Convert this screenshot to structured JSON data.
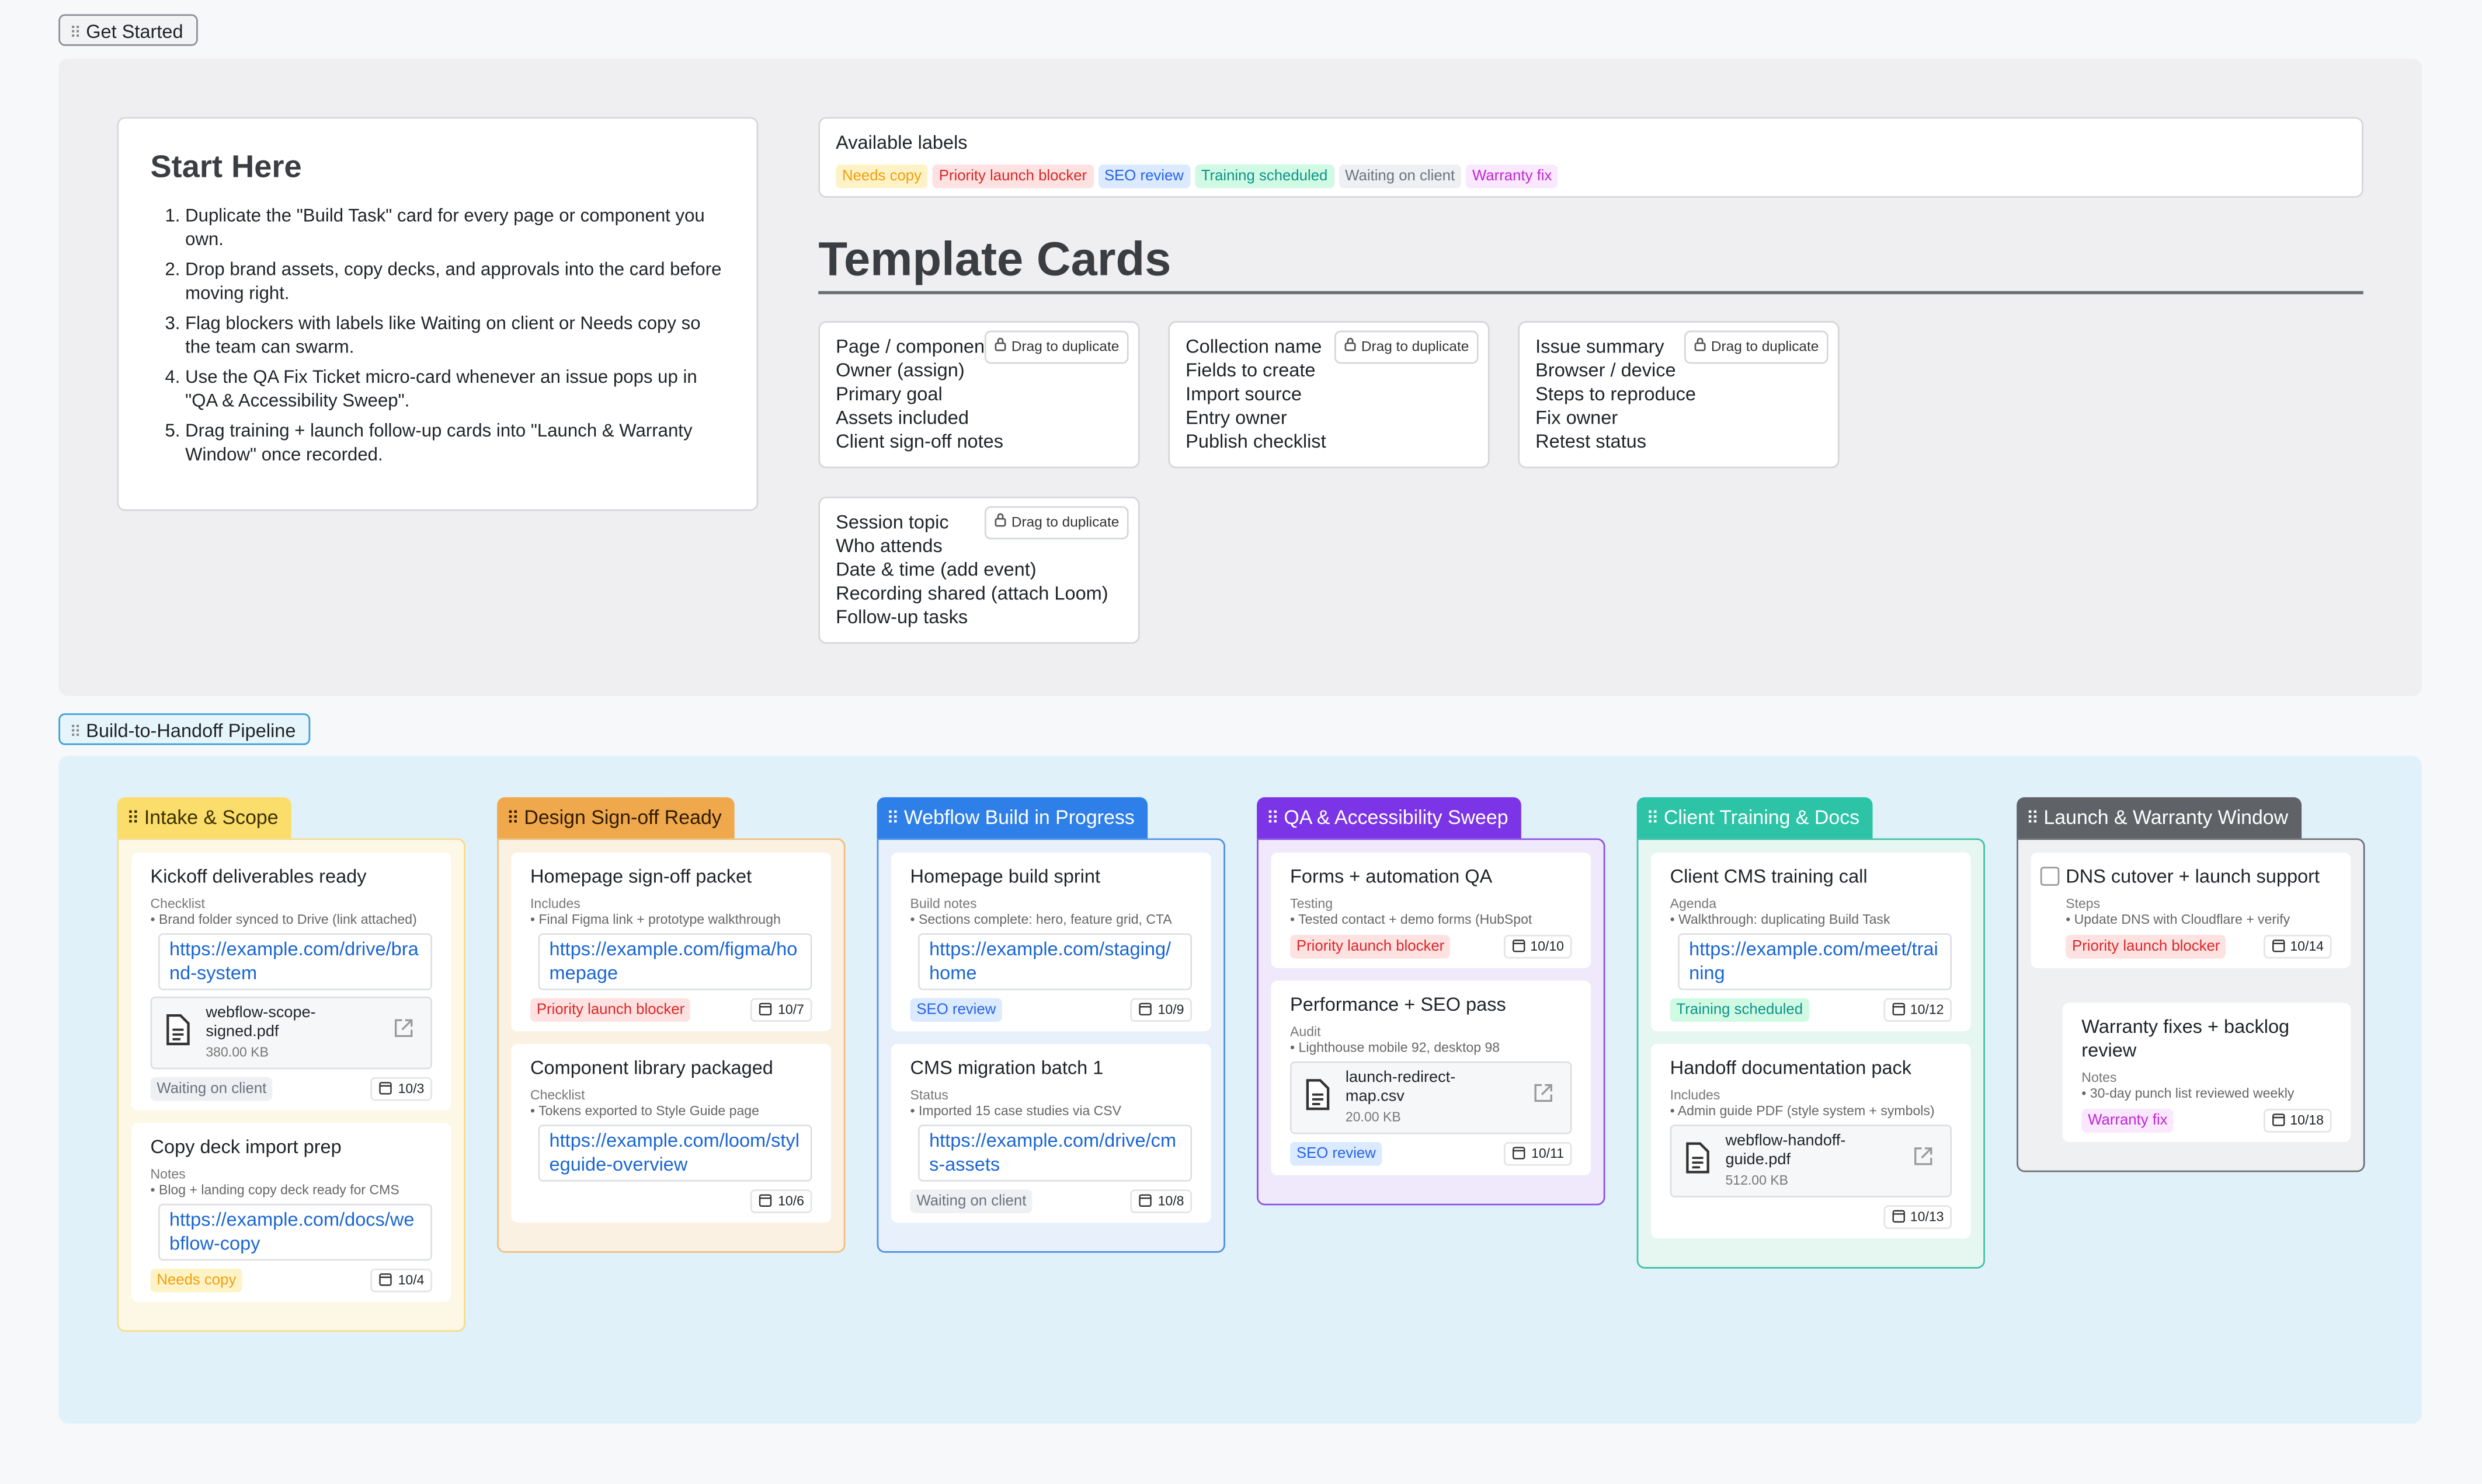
{
  "get_started": {
    "tab": "Get Started",
    "start_here": {
      "title": "Start Here",
      "steps": [
        "Duplicate the \"Build Task\" card for every page or component you own.",
        "Drop brand assets, copy decks, and approvals into the card before moving right.",
        "Flag blockers with labels like Waiting on client or Needs copy so the team can swarm.",
        "Use the QA Fix Ticket micro-card whenever an issue pops up in \"QA & Accessibility Sweep\".",
        "Drag training + launch follow-up cards into \"Launch & Warranty Window\" once recorded."
      ]
    },
    "available_labels": {
      "title": "Available labels",
      "labels": [
        {
          "text": "Needs copy",
          "color": "#f59e0b",
          "bg": "#fef3c7"
        },
        {
          "text": "Priority launch blocker",
          "color": "#dc2626",
          "bg": "#fee2e2"
        },
        {
          "text": "SEO review",
          "color": "#2563eb",
          "bg": "#dbeafe"
        },
        {
          "text": "Training scheduled",
          "color": "#0d9488",
          "bg": "#d1fae5"
        },
        {
          "text": "Waiting on client",
          "color": "#6b7280",
          "bg": "#eef0f3"
        },
        {
          "text": "Warranty fix",
          "color": "#c026d3",
          "bg": "#fae8ff"
        }
      ]
    },
    "template_cards": {
      "title": "Template Cards",
      "drag_hint": "Drag to duplicate",
      "cards": [
        [
          "Page / componen",
          "Owner (assign)",
          "Primary goal",
          "Assets included",
          "Client sign-off notes"
        ],
        [
          "Collection name",
          "Fields to create",
          "Import source",
          "Entry owner",
          "Publish checklist"
        ],
        [
          "Issue summary",
          "Browser / device",
          "Steps to reproduce",
          "Fix owner",
          "Retest status"
        ],
        [
          "Session topic",
          "Who attends",
          "Date & time (add event)",
          "Recording shared (attach Loom)",
          "Follow-up tasks"
        ]
      ]
    }
  },
  "pipeline": {
    "tab": "Build-to-Handoff Pipeline",
    "columns": [
      {
        "title": "Intake & Scope",
        "color": "#fbdd6b",
        "text_color": "#3a3000",
        "border": "#f6dc8a",
        "bg": "#fdf7e6",
        "cards": [
          {
            "title": "Kickoff deliverables ready",
            "section": "Checklist",
            "note": "• Brand folder synced to Drive (link attached)",
            "link": "https://example.com/drive/brand-system",
            "file": {
              "name": "webflow-scope-signed.pdf",
              "size": "380.00 KB"
            },
            "label": "Waiting on client",
            "date": "10/3"
          },
          {
            "title": "Copy deck import prep",
            "section": "Notes",
            "note": "• Blog + landing copy deck ready for CMS",
            "link": "https://example.com/docs/webflow-copy",
            "label": "Needs copy",
            "date": "10/4"
          }
        ]
      },
      {
        "title": "Design Sign-off Ready",
        "color": "#f0a84c",
        "text_color": "#2e1a00",
        "border": "#efbd7c",
        "bg": "#fbf1e3",
        "cards": [
          {
            "title": "Homepage sign-off packet",
            "section": "Includes",
            "note": "• Final Figma link + prototype walkthrough",
            "link": "https://example.com/figma/homepage",
            "label": "Priority launch blocker",
            "date": "10/7"
          },
          {
            "title": "Component library packaged",
            "section": "Checklist",
            "note": "• Tokens exported to Style Guide page",
            "link": "https://example.com/loom/styleguide-overview",
            "date": "10/6"
          }
        ]
      },
      {
        "title": "Webflow Build in Progress",
        "color": "#2f7fe8",
        "text_color": "#ffffff",
        "border": "#4a8fe6",
        "bg": "#e8f1fb",
        "cards": [
          {
            "title": "Homepage build sprint",
            "section": "Build notes",
            "note": "• Sections complete: hero, feature grid, CTA",
            "link": "https://example.com/staging/home",
            "label": "SEO review",
            "date": "10/9"
          },
          {
            "title": "CMS migration batch 1",
            "section": "Status",
            "note": "• Imported 15 case studies via CSV",
            "link": "https://example.com/drive/cms-assets",
            "label": "Waiting on client",
            "date": "10/8"
          }
        ]
      },
      {
        "title": "QA & Accessibility Sweep",
        "color": "#7b34e6",
        "text_color": "#ffffff",
        "border": "#8a4ee8",
        "bg": "#efe9fb",
        "cards": [
          {
            "title": "Forms + automation QA",
            "section": "Testing",
            "note": "• Tested contact + demo forms (HubSpot",
            "label": "Priority launch blocker",
            "date": "10/10"
          },
          {
            "title": "Performance + SEO pass",
            "section": "Audit",
            "note": "• Lighthouse mobile 92, desktop 98",
            "file": {
              "name": "launch-redirect-map.csv",
              "size": "20.00 KB"
            },
            "label": "SEO review",
            "date": "10/11"
          }
        ]
      },
      {
        "title": "Client Training & Docs",
        "color": "#2cc3a6",
        "text_color": "#ffffff",
        "border": "#3ec0a6",
        "bg": "#e6f6f1",
        "cards": [
          {
            "title": "Client CMS training call",
            "section": "Agenda",
            "note": "• Walkthrough: duplicating Build Task",
            "link": "https://example.com/meet/training",
            "label": "Training scheduled",
            "date": "10/12"
          },
          {
            "title": "Handoff documentation pack",
            "section": "Includes",
            "note": "• Admin guide PDF (style system + symbols)",
            "file": {
              "name": "webflow-handoff-guide.pdf",
              "size": "512.00 KB"
            },
            "date": "10/13"
          }
        ]
      },
      {
        "title": "Launch & Warranty Window",
        "color": "#5f6368",
        "text_color": "#ffffff",
        "border": "#6b6f75",
        "bg": "#eef0f2",
        "cards": [
          {
            "title": "DNS cutover + launch support",
            "checked": false,
            "section": "Steps",
            "note": "• Update DNS with Cloudflare + verify",
            "label": "Priority launch blocker",
            "date": "10/14"
          },
          {
            "title": "Warranty fixes + backlog review",
            "section": "Notes",
            "note": "• 30-day punch list reviewed weekly",
            "label": "Warranty fix",
            "date": "10/18"
          }
        ]
      }
    ]
  }
}
